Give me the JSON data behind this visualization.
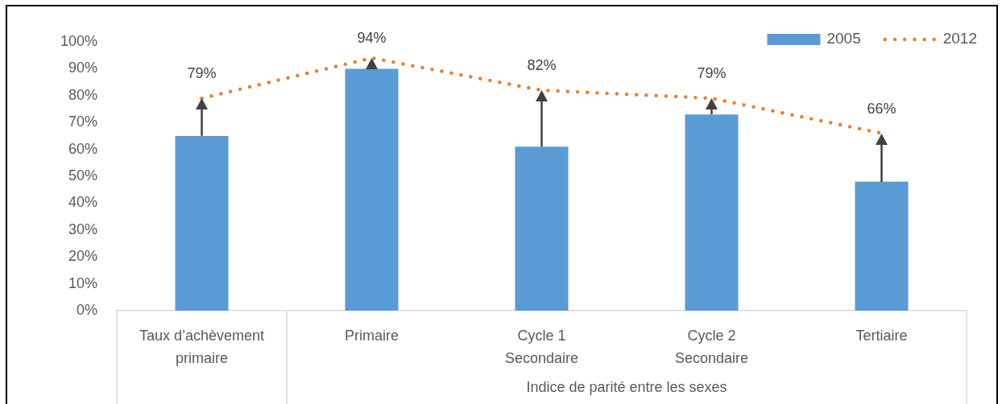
{
  "chart_data": {
    "type": "bar",
    "categories": [
      "Taux d’achèvement primaire",
      "Primaire",
      "Cycle 1 Secondaire",
      "Cycle 2 Secondaire",
      "Tertiaire"
    ],
    "series": [
      {
        "name": "2005",
        "color": "#5b9bd5",
        "values": [
          65,
          90,
          61,
          73,
          48
        ]
      },
      {
        "name": "2012",
        "type": "line",
        "color": "#ed7d31",
        "values": [
          79,
          94,
          82,
          79,
          66
        ],
        "value_labels": [
          "79%",
          "94%",
          "82%",
          "79%",
          "66%"
        ]
      }
    ],
    "ylim": [
      0,
      100
    ],
    "yticks": [
      {
        "value": 0,
        "label": "0%"
      },
      {
        "value": 10,
        "label": "10%"
      },
      {
        "value": 20,
        "label": "20%"
      },
      {
        "value": 30,
        "label": "30%"
      },
      {
        "value": 40,
        "label": "40%"
      },
      {
        "value": 50,
        "label": "50%"
      },
      {
        "value": 60,
        "label": "60%"
      },
      {
        "value": 70,
        "label": "70%"
      },
      {
        "value": 80,
        "label": "80%"
      },
      {
        "value": 90,
        "label": "90%"
      },
      {
        "value": 100,
        "label": "100%"
      }
    ],
    "annotations": [
      "Indice de parité entre les sexes"
    ],
    "line_style": "dotted",
    "marker": "none",
    "legend": "top right"
  }
}
